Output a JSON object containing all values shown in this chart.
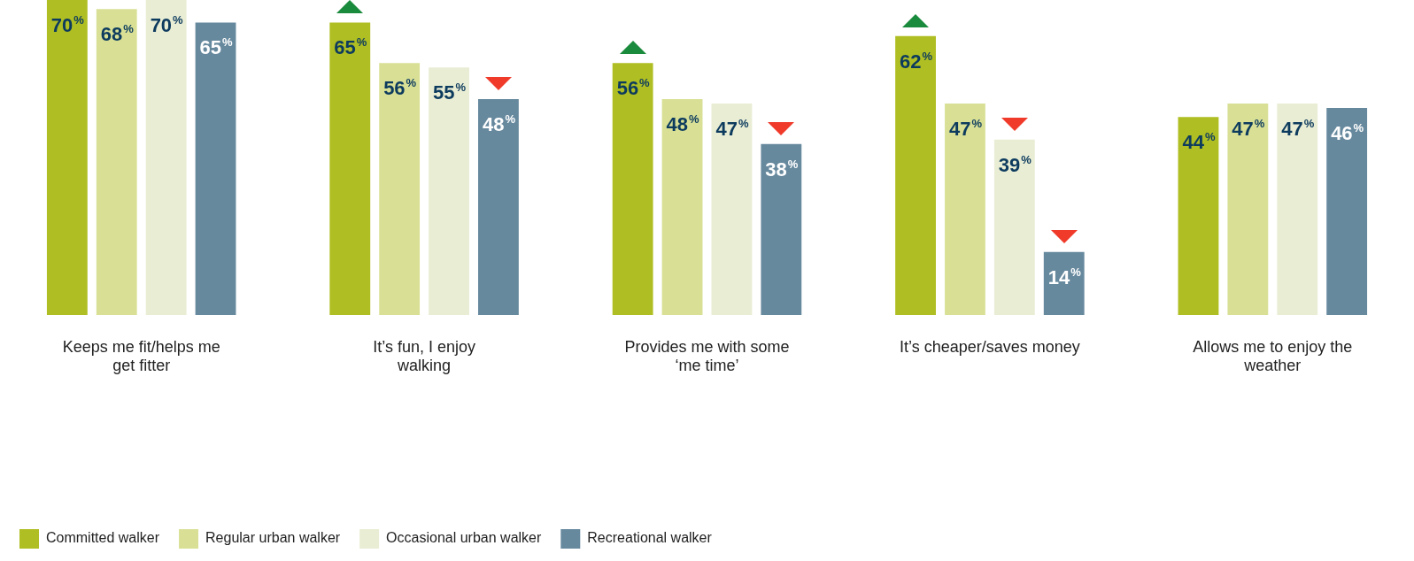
{
  "chart_data": {
    "type": "bar",
    "categories": [
      "Keeps me fit/helps me get fitter",
      "It’s fun, I enjoy walking",
      "Provides me with some ‘me time’",
      "It’s cheaper/saves money",
      "Allows me to enjoy the weather"
    ],
    "series": [
      {
        "name": "Committed walker",
        "color": "#afbe22",
        "values": [
          70,
          65,
          56,
          62,
          44
        ],
        "value_labels": [
          "70%",
          "65%",
          "56%",
          "62%",
          "44%"
        ]
      },
      {
        "name": "Regular urban walker",
        "color": "#d9e096",
        "values": [
          68,
          56,
          48,
          47,
          47
        ],
        "value_labels": [
          "68%",
          "56%",
          "48%",
          "47%",
          "47%"
        ]
      },
      {
        "name": "Occasional urban walker",
        "color": "#e9edd4",
        "values": [
          70,
          55,
          47,
          39,
          47
        ],
        "value_labels": [
          "70%",
          "55%",
          "47%",
          "39%",
          "47%"
        ]
      },
      {
        "name": "Recreational walker",
        "color": "#67899e",
        "values": [
          65,
          48,
          38,
          14,
          46
        ],
        "value_labels": [
          "65%",
          "48%",
          "38%",
          "14%",
          "46%"
        ]
      }
    ],
    "ylim": [
      0,
      70
    ],
    "legend": "bottom left",
    "grid": false
  }
}
